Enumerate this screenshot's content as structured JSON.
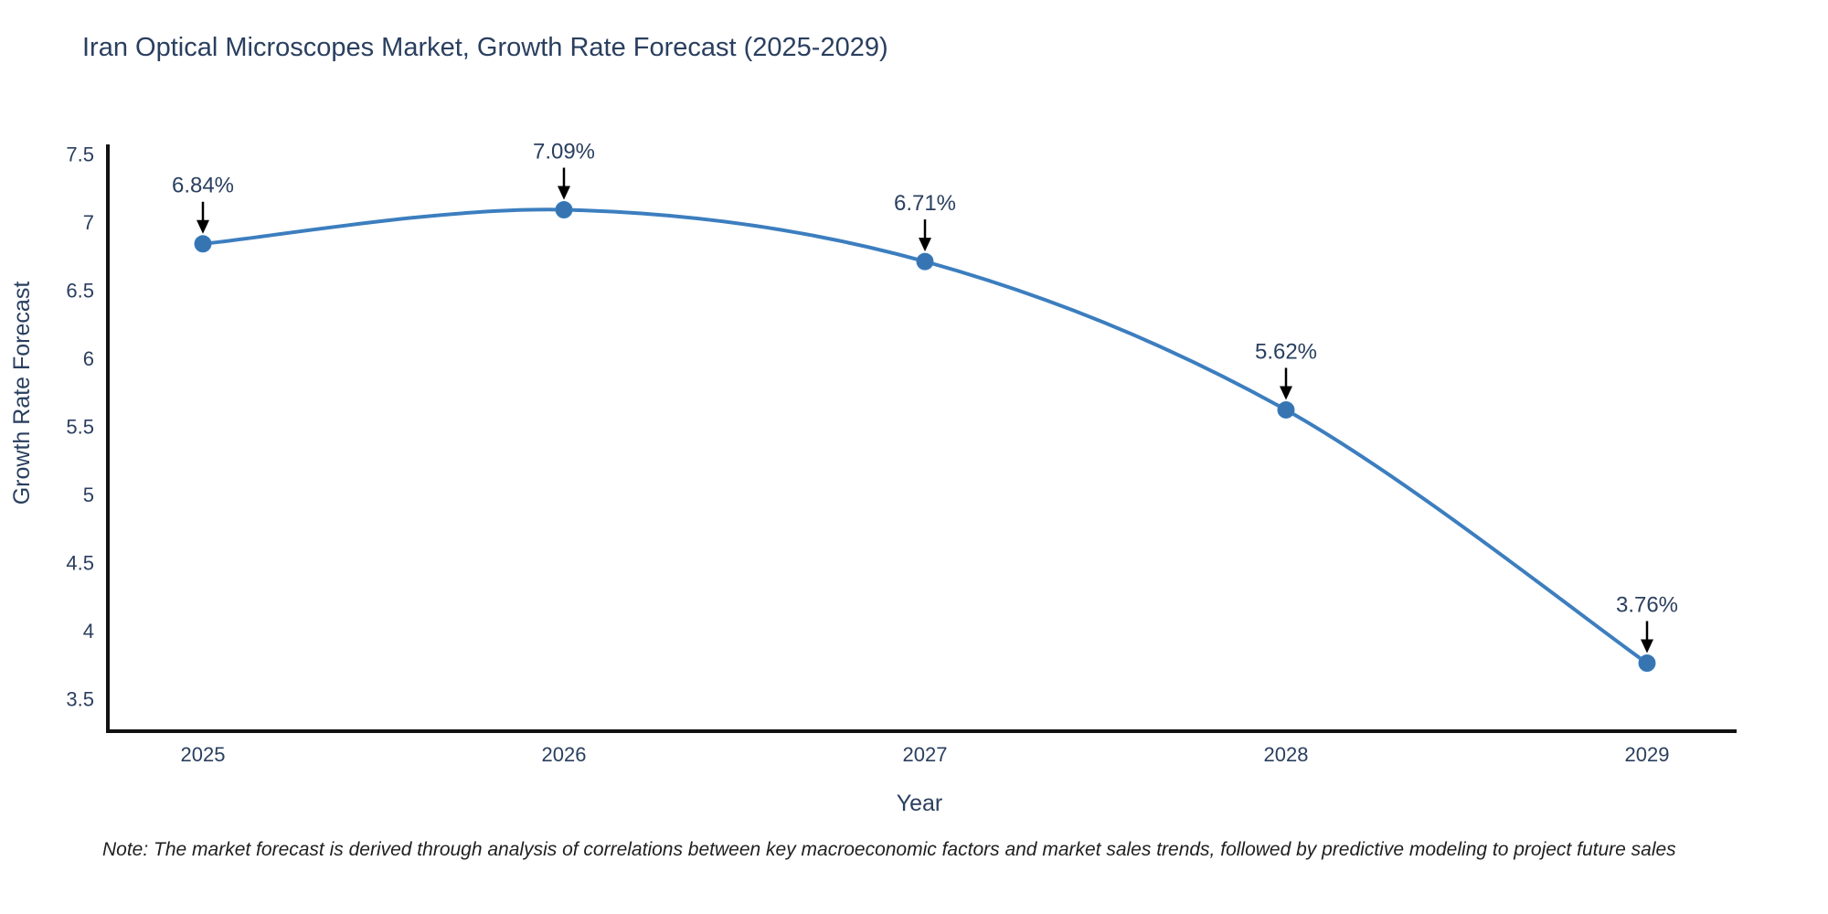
{
  "chart_data": {
    "type": "line",
    "title": "Iran Optical Microscopes Market, Growth Rate Forecast (2025-2029)",
    "xlabel": "Year",
    "ylabel": "Growth Rate Forecast",
    "categories": [
      "2025",
      "2026",
      "2027",
      "2028",
      "2029"
    ],
    "series": [
      {
        "name": "Growth Rate Forecast",
        "values": [
          6.84,
          7.09,
          6.71,
          5.62,
          3.76
        ],
        "point_labels": [
          "6.84%",
          "7.09%",
          "6.71%",
          "5.62%",
          "3.76%"
        ]
      }
    ],
    "ytick_labels": [
      "3.5",
      "4",
      "4.5",
      "5",
      "5.5",
      "6",
      "6.5",
      "7",
      "7.5"
    ],
    "yticks": [
      3.5,
      4,
      4.5,
      5,
      5.5,
      6,
      6.5,
      7,
      7.5
    ],
    "ylim": [
      3.26,
      7.57
    ],
    "grid": false,
    "legend_position": "none",
    "line_shape": "spline",
    "colors": {
      "line": "#3c7ebf",
      "marker": "#3674b2",
      "arrow": "#000000",
      "axis": "#111111",
      "text": "#2a3f5f"
    }
  },
  "note": "Note: The market forecast is derived through analysis of correlations between key macroeconomic factors and market sales trends, followed by predictive modeling to project future sales"
}
